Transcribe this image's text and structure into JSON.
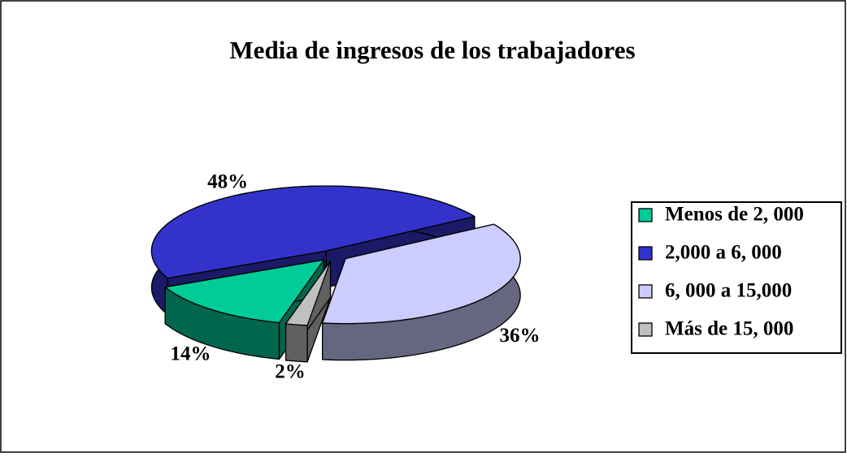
{
  "chart_data": {
    "type": "pie3d",
    "title": "Media de ingresos de los trabajadores",
    "categories": [
      "Menos de 2, 000",
      "2,000 a 6, 000",
      "6, 000 a 15,000",
      "Más de 15, 000"
    ],
    "values": [
      14,
      48,
      36,
      2
    ],
    "value_labels": [
      "14%",
      "48%",
      "36%",
      "2%"
    ],
    "colors": [
      "#00cc99",
      "#3333cc",
      "#ccccff",
      "#c0c0c0"
    ],
    "legend": "right"
  }
}
